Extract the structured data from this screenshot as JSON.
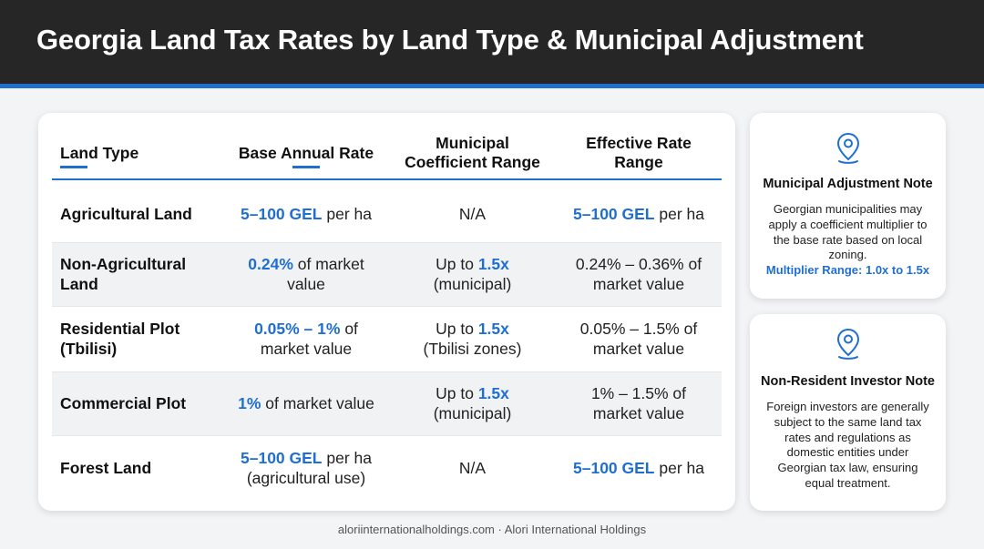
{
  "title": "Georgia Land Tax Rates by Land Type & Municipal Adjustment",
  "table": {
    "headers": {
      "land_type": "Land Type",
      "base_rate": "Base Annual Rate",
      "coeff_line1": "Municipal",
      "coeff_line2": "Coefficient Range",
      "eff_line1": "Effective Rate",
      "eff_line2": "Range"
    },
    "rows": [
      {
        "type_line1": "Agricultural Land",
        "type_line2": "",
        "base_hl": "5–100 GEL",
        "base_rest": " per ha",
        "base_line2": "",
        "coeff_pre": "",
        "coeff_hl": "",
        "coeff_plain": "N/A",
        "coeff_line2": "",
        "eff_hl": "5–100 GEL",
        "eff_rest": " per ha",
        "eff_line1": "",
        "eff_line2": ""
      },
      {
        "type_line1": "Non-Agricultural",
        "type_line2": "Land",
        "base_hl": "0.24%",
        "base_rest": " of market",
        "base_line2": "value",
        "coeff_pre": "Up to ",
        "coeff_hl": "1.5x",
        "coeff_plain": "",
        "coeff_line2": "(municipal)",
        "eff_hl": "",
        "eff_rest": "",
        "eff_line1": "0.24% – 0.36% of",
        "eff_line2": "market value"
      },
      {
        "type_line1": "Residential Plot",
        "type_line2": "(Tbilisi)",
        "base_hl": "0.05% – 1%",
        "base_rest": " of",
        "base_line2": "market value",
        "coeff_pre": "Up to ",
        "coeff_hl": "1.5x",
        "coeff_plain": "",
        "coeff_line2": "(Tbilisi zones)",
        "eff_hl": "",
        "eff_rest": "",
        "eff_line1": "0.05% – 1.5% of",
        "eff_line2": "market value"
      },
      {
        "type_line1": "Commercial Plot",
        "type_line2": "",
        "base_hl": "1%",
        "base_rest": " of market value",
        "base_line2": "",
        "coeff_pre": "Up to ",
        "coeff_hl": "1.5x",
        "coeff_plain": "",
        "coeff_line2": "(municipal)",
        "eff_hl": "",
        "eff_rest": "",
        "eff_line1": "1% – 1.5% of",
        "eff_line2": "market value"
      },
      {
        "type_line1": "Forest Land",
        "type_line2": "",
        "base_hl": "5–100 GEL",
        "base_rest": " per ha",
        "base_line2": "(agricultural use)",
        "coeff_pre": "",
        "coeff_hl": "",
        "coeff_plain": "N/A",
        "coeff_line2": "",
        "eff_hl": "5–100 GEL",
        "eff_rest": " per ha",
        "eff_line1": "",
        "eff_line2": ""
      }
    ]
  },
  "notes": {
    "municipal": {
      "title": "Municipal Adjustment Note",
      "body": "Georgian municipalities may apply a coefficient multiplier to the base rate based on local zoning.",
      "highlight": "Multiplier Range: 1.0x to 1.5x",
      "icon": "map-pin-icon"
    },
    "investor": {
      "title": "Non-Resident Investor Note",
      "body": "Foreign investors are generally subject to the same land tax rates and regulations as domestic entities under Georgian tax law, ensuring equal treatment.",
      "icon": "map-pin-icon"
    }
  },
  "footer": "aloriinternationalholdings.com · Alori International Holdings",
  "colors": {
    "accent": "#1f6fd1",
    "header_bg": "#262626",
    "page_bg": "#f3f4f6"
  }
}
